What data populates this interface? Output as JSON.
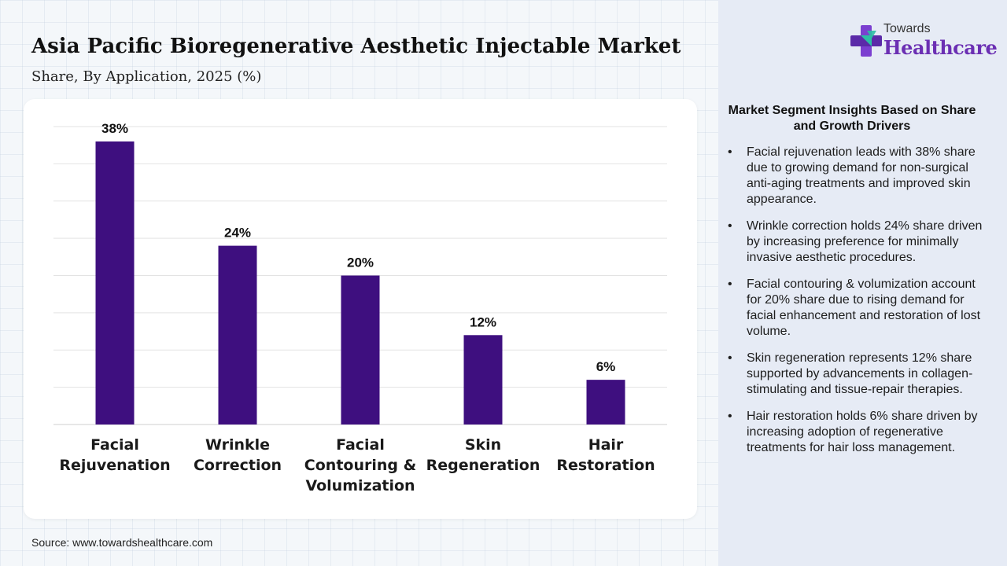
{
  "title": "Asia Pacific Bioregenerative Aesthetic Injectable Market",
  "subtitle": "Share, By Application, 2025 (%)",
  "source": "Source: www.towardshealthcare.com",
  "colors": {
    "bar": "#3e0f7f",
    "panel": "#e6ebf5",
    "brand": "#6b2fb3"
  },
  "logo": {
    "top": "Towards",
    "main": "Healthcare"
  },
  "insights": {
    "title": "Market Segment Insights Based on Share and Growth Drivers",
    "bullet": "•",
    "items": [
      "Facial rejuvenation leads with 38% share due to growing demand for non-surgical anti-aging treatments and improved skin appearance.",
      "Wrinkle correction holds 24% share driven by increasing preference for minimally invasive aesthetic procedures.",
      "Facial contouring & volumization account for 20% share due to rising demand for facial enhancement and restoration of lost volume.",
      "Skin regeneration represents 12% share supported by advancements in collagen-stimulating and tissue-repair therapies.",
      "Hair restoration holds 6% share driven by increasing adoption of regenerative treatments for hair loss management."
    ]
  },
  "chart_data": {
    "type": "bar",
    "categories": [
      [
        "Facial",
        "Rejuvenation"
      ],
      [
        "Wrinkle",
        "Correction"
      ],
      [
        "Facial",
        "Contouring &",
        "Volumization"
      ],
      [
        "Skin",
        "Regeneration"
      ],
      [
        "Hair",
        "Restoration"
      ]
    ],
    "values": [
      38,
      24,
      20,
      12,
      6
    ],
    "data_labels": [
      "38%",
      "24%",
      "20%",
      "12%",
      "6%"
    ],
    "ylim": [
      0,
      40
    ],
    "grid": true,
    "xlabel": "",
    "ylabel": ""
  }
}
